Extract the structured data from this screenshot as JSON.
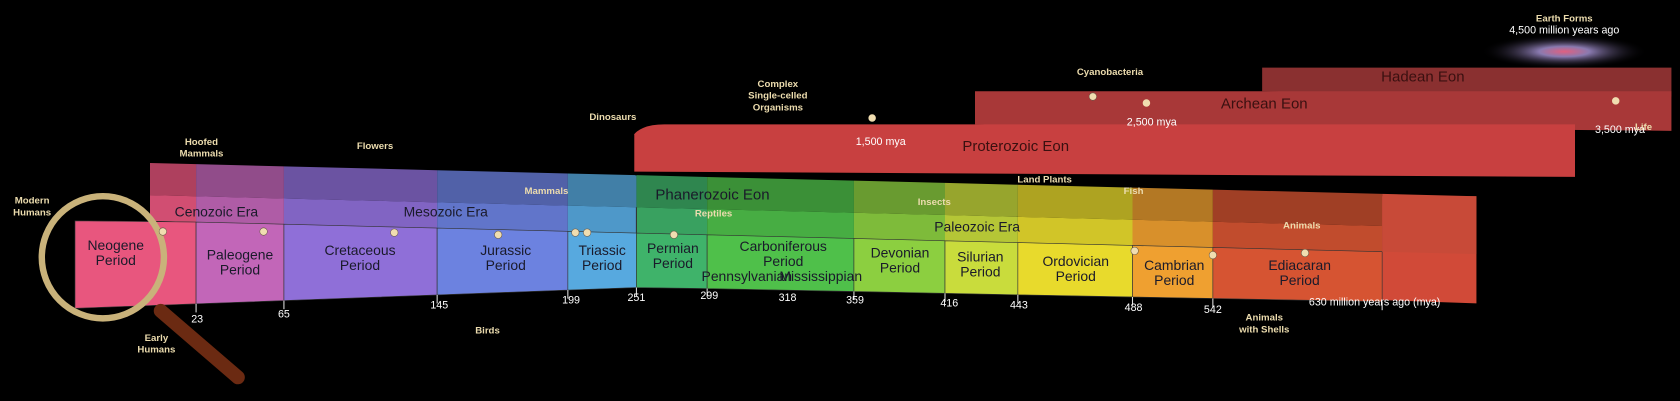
{
  "eons": [
    "Phanerozoic Eon",
    "Proterozoic Eon",
    "Archean Eon",
    "Hadean Eon"
  ],
  "eras": [
    "Cenozoic Era",
    "Mesozoic Era",
    "Paleozoic Era"
  ],
  "periods": [
    {
      "name": "Neogene",
      "unit": "Period"
    },
    {
      "name": "Paleogene",
      "unit": "Period"
    },
    {
      "name": "Cretaceous",
      "unit": "Period"
    },
    {
      "name": "Jurassic",
      "unit": "Period"
    },
    {
      "name": "Triassic",
      "unit": "Period"
    },
    {
      "name": "Permian",
      "unit": "Period"
    },
    {
      "name": "Carboniferous",
      "unit": "Period"
    },
    {
      "name": "Devonian",
      "unit": "Period"
    },
    {
      "name": "Silurian",
      "unit": "Period"
    },
    {
      "name": "Ordovician",
      "unit": "Period"
    },
    {
      "name": "Cambrian",
      "unit": "Period"
    },
    {
      "name": "Ediacaran",
      "unit": "Period"
    }
  ],
  "subperiods": [
    "Pennsylvanian",
    "Mississippian"
  ],
  "time_ticks": [
    "23",
    "65",
    "145",
    "199",
    "251",
    "299",
    "318",
    "359",
    "416",
    "443",
    "488",
    "542",
    "630 million years ago (mya)"
  ],
  "eon_dates": [
    "1,500 mya",
    "2,500 mya",
    "3,500 mya"
  ],
  "earth_forms": {
    "title": "Earth Forms",
    "date": "4,500 million years ago"
  },
  "events": [
    {
      "lines": [
        "Modern",
        "Humans"
      ]
    },
    {
      "lines": [
        "Early",
        "Humans"
      ]
    },
    {
      "lines": [
        "Hoofed",
        "Mammals"
      ]
    },
    {
      "lines": [
        "Flowers"
      ]
    },
    {
      "lines": [
        "Mammals"
      ]
    },
    {
      "lines": [
        "Birds"
      ]
    },
    {
      "lines": [
        "Dinosaurs"
      ]
    },
    {
      "lines": [
        "Reptiles"
      ]
    },
    {
      "lines": [
        "Complex",
        "Single-celled",
        "Organisms"
      ]
    },
    {
      "lines": [
        "Insects"
      ]
    },
    {
      "lines": [
        "Land Plants"
      ]
    },
    {
      "lines": [
        "Fish"
      ]
    },
    {
      "lines": [
        "Animals"
      ]
    },
    {
      "lines": [
        "Animals",
        "with Shells"
      ]
    },
    {
      "lines": [
        "Cyanobacteria"
      ]
    },
    {
      "lines": [
        "Life"
      ]
    }
  ]
}
